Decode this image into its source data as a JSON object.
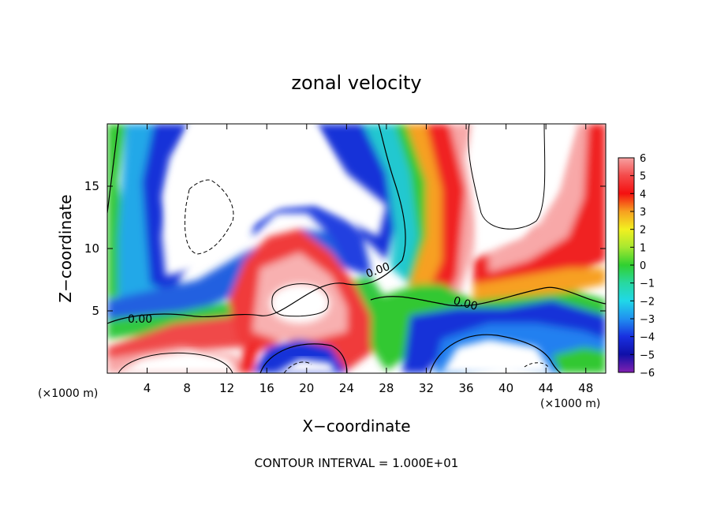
{
  "chart_data": {
    "type": "heatmap",
    "title": "zonal velocity",
    "xlabel": "X−coordinate",
    "ylabel": "Z−coordinate",
    "x_unit_left": "(×1000 m)",
    "x_unit_right": "(×1000 m)",
    "xlim": [
      0,
      50
    ],
    "ylim": [
      0,
      20
    ],
    "x_ticks": [
      4,
      8,
      12,
      16,
      20,
      24,
      28,
      32,
      36,
      40,
      44,
      48
    ],
    "y_ticks": [
      5,
      10,
      15
    ],
    "colorbar": {
      "ticks": [
        "6",
        "5",
        "4",
        "3",
        "2",
        "1",
        "0",
        "−1",
        "−2",
        "−3",
        "−4",
        "−5",
        "−6"
      ],
      "range": [
        -6,
        6
      ]
    },
    "contour_labels": [
      "0.00",
      "0.00",
      "0.00"
    ],
    "footer": "CONTOUR INTERVAL = 1.000E+01"
  }
}
